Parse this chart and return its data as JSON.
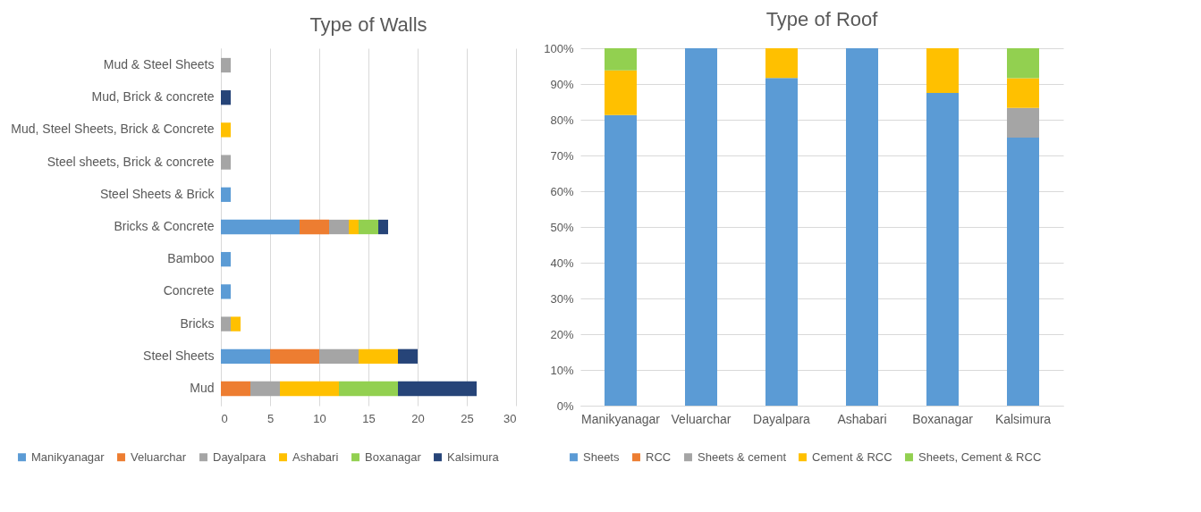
{
  "chart_data": [
    {
      "type": "bar",
      "title": "Type of Walls",
      "orientation": "horizontal",
      "stacked": true,
      "legend": "bottom",
      "grid": "x",
      "categories": [
        "Mud & Steel Sheets",
        "Mud, Brick & concrete",
        "Mud, Steel Sheets, Brick & Concrete",
        "Steel sheets, Brick & concrete",
        "Steel Sheets & Brick",
        "Bricks & Concrete",
        "Bamboo",
        "Concrete",
        "Bricks",
        "Steel Sheets",
        "Mud"
      ],
      "xlim": [
        0,
        30
      ],
      "xticks": [
        0,
        5,
        10,
        15,
        20,
        25,
        30
      ],
      "series": [
        {
          "name": "Manikyanagar",
          "color": "#5b9bd5",
          "values": [
            0,
            0,
            0,
            0,
            1,
            8,
            1,
            1,
            0,
            5,
            0
          ]
        },
        {
          "name": "Veluarchar",
          "color": "#ed7d31",
          "values": [
            0,
            0,
            0,
            0,
            0,
            3,
            0,
            0,
            0,
            5,
            3
          ]
        },
        {
          "name": "Dayalpara",
          "color": "#a5a5a5",
          "values": [
            1,
            0,
            0,
            1,
            0,
            2,
            0,
            0,
            1,
            4,
            3
          ]
        },
        {
          "name": "Ashabari",
          "color": "#ffc000",
          "values": [
            0,
            0,
            1,
            0,
            0,
            1,
            0,
            0,
            1,
            4,
            6
          ]
        },
        {
          "name": "Boxanagar",
          "color": "#92d050",
          "values": [
            0,
            0,
            0,
            0,
            0,
            2,
            0,
            0,
            0,
            0,
            6
          ]
        },
        {
          "name": "Kalsimura",
          "color": "#264478",
          "values": [
            0,
            1,
            0,
            0,
            0,
            1,
            0,
            0,
            0,
            2,
            8
          ]
        }
      ]
    },
    {
      "type": "bar",
      "title": "Type of Roof",
      "stacked": true,
      "legend": "bottom",
      "grid": "y",
      "categories": [
        "Manikyanagar",
        "Veluarchar",
        "Dayalpara",
        "Ashabari",
        "Boxanagar",
        "Kalsimura"
      ],
      "ylim": [
        0,
        100
      ],
      "yticks": [
        {
          "value": 0,
          "label": "0%"
        },
        {
          "value": 10,
          "label": "10%"
        },
        {
          "value": 20,
          "label": "20%"
        },
        {
          "value": 30,
          "label": "30%"
        },
        {
          "value": 40,
          "label": "40%"
        },
        {
          "value": 50,
          "label": "50%"
        },
        {
          "value": 60,
          "label": "60%"
        },
        {
          "value": 70,
          "label": "70%"
        },
        {
          "value": 80,
          "label": "80%"
        },
        {
          "value": 90,
          "label": "90%"
        },
        {
          "value": 100,
          "label": "100%"
        }
      ],
      "series": [
        {
          "name": "Sheets",
          "color": "#5b9bd5",
          "values": [
            81.3,
            100,
            91.7,
            100,
            87.5,
            75
          ]
        },
        {
          "name": "RCC",
          "color": "#ed7d31",
          "values": [
            0,
            0,
            0,
            0,
            0,
            0
          ]
        },
        {
          "name": "Sheets & cement",
          "color": "#a5a5a5",
          "values": [
            0,
            0,
            0,
            0,
            0,
            8.3
          ]
        },
        {
          "name": "Cement & RCC",
          "color": "#ffc000",
          "values": [
            12.5,
            0,
            8.3,
            0,
            12.5,
            8.3
          ]
        },
        {
          "name": "Sheets, Cement & RCC",
          "color": "#92d050",
          "values": [
            6.2,
            0,
            0,
            0,
            0,
            8.4
          ]
        }
      ]
    }
  ]
}
